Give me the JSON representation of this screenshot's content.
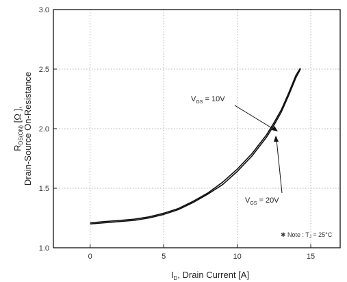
{
  "chart_data": {
    "type": "line",
    "title": "",
    "xlabel": "I_D, Drain Current [A]",
    "xlabel_parts": {
      "sym": "I",
      "sub": "D",
      "rest": ", Drain Current [A]"
    },
    "ylabel_line1_parts": {
      "sym": "R",
      "sub": "DS(ON)",
      "rest": " [Ω ],",
      "line": "R_DS(ON) [Ω ],"
    },
    "ylabel_line2": "Drain-Source On-Resistance",
    "xlim": [
      -2.5,
      17
    ],
    "ylim": [
      1.0,
      3.0
    ],
    "xticks": [
      "0",
      "5",
      "10",
      "15"
    ],
    "xtick_values": [
      0,
      5,
      10,
      15
    ],
    "yticks": [
      "1.0",
      "1.5",
      "2.0",
      "2.5",
      "3.0"
    ],
    "ytick_values": [
      1.0,
      1.5,
      2.0,
      2.5,
      3.0
    ],
    "grid": true,
    "series": [
      {
        "name": "V_GS = 10V",
        "x": [
          0,
          1,
          2,
          3,
          4,
          5,
          6,
          7,
          8,
          9,
          10,
          11,
          12,
          12.5,
          13,
          13.5,
          14,
          14.3
        ],
        "y": [
          1.2,
          1.21,
          1.22,
          1.23,
          1.25,
          1.28,
          1.32,
          1.38,
          1.45,
          1.53,
          1.64,
          1.77,
          1.93,
          2.03,
          2.14,
          2.28,
          2.43,
          2.5
        ]
      },
      {
        "name": "V_GS = 20V",
        "x": [
          0,
          1,
          2,
          3,
          4,
          5,
          6,
          7,
          8,
          9,
          10,
          11,
          12,
          12.5,
          13,
          13.5,
          14,
          14.3
        ],
        "y": [
          1.21,
          1.22,
          1.23,
          1.24,
          1.26,
          1.29,
          1.33,
          1.39,
          1.46,
          1.55,
          1.66,
          1.79,
          1.95,
          2.05,
          2.16,
          2.3,
          2.45,
          2.51
        ]
      }
    ],
    "annotations": [
      {
        "text_parts": {
          "sym": "V",
          "sub": "GS",
          "rest": " = 10V"
        },
        "text": "V_GS = 10V"
      },
      {
        "text_parts": {
          "sym": "V",
          "sub": "GS",
          "rest": " = 20V"
        },
        "text": "V_GS = 20V"
      }
    ],
    "note": "※ Note : T_J = 25°C",
    "note_parts": {
      "pre": "✱ Note : T",
      "sub": "J",
      "post": " = 25°C"
    }
  }
}
